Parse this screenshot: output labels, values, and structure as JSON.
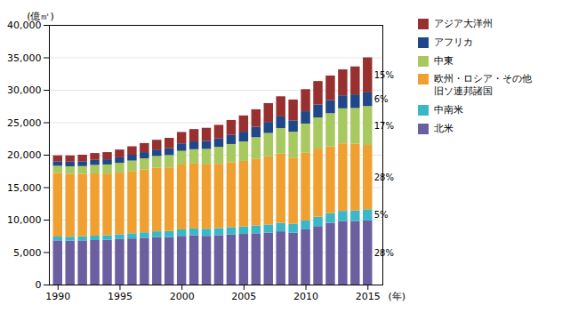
{
  "chart_data": {
    "type": "bar",
    "stacked": true,
    "x": [
      1990,
      1991,
      1992,
      1993,
      1994,
      1995,
      1996,
      1997,
      1998,
      1999,
      2000,
      2001,
      2002,
      2003,
      2004,
      2005,
      2006,
      2007,
      2008,
      2009,
      2010,
      2011,
      2012,
      2013,
      2014,
      2015
    ],
    "xlim": [
      1989.3,
      2016.2
    ],
    "xticks": [
      1990,
      1995,
      2000,
      2005,
      2010,
      2015
    ],
    "xlabel": "(年)",
    "ylabel": "(億㎥)",
    "ylim": [
      0,
      40000
    ],
    "yticks": [
      0,
      {
        "value": 5000,
        "label": "5,000"
      },
      {
        "value": 10000,
        "label": "10,000"
      },
      {
        "value": 15000,
        "label": "15,000"
      },
      {
        "value": 20000,
        "label": "20,000"
      },
      {
        "value": 25000,
        "label": "25,000"
      },
      {
        "value": 30000,
        "label": "30,000"
      },
      {
        "value": 35000,
        "label": "35,000"
      },
      {
        "value": 40000,
        "label": "40,000"
      }
    ],
    "grid": true,
    "legend": "right",
    "series": [
      {
        "name": "北米",
        "color": "#6b5fa0",
        "annotation": "28%",
        "values": [
          6800,
          6750,
          6800,
          6850,
          6900,
          7000,
          7100,
          7200,
          7300,
          7300,
          7500,
          7600,
          7500,
          7600,
          7700,
          7800,
          7900,
          8000,
          8200,
          8000,
          8500,
          9000,
          9500,
          9800,
          9800,
          9900
        ]
      },
      {
        "name": "中南米",
        "color": "#3ab8c8",
        "annotation": "5%",
        "values": [
          600,
          620,
          650,
          680,
          700,
          750,
          800,
          850,
          900,
          950,
          1000,
          1050,
          1100,
          1100,
          1150,
          1150,
          1200,
          1250,
          1300,
          1350,
          1400,
          1450,
          1500,
          1550,
          1600,
          1700
        ]
      },
      {
        "name": "欧州・ロシア・その他\n旧ソ連邦諸国",
        "color": "#f0a030",
        "annotation": "28%",
        "values": [
          9800,
          9700,
          9600,
          9600,
          9500,
          9500,
          9600,
          9700,
          9800,
          9800,
          10000,
          10000,
          9900,
          9900,
          10000,
          10100,
          10300,
          10500,
          10700,
          10200,
          10400,
          10500,
          10300,
          10400,
          10300,
          9900
        ]
      },
      {
        "name": "中東",
        "color": "#a8c860",
        "annotation": "17%",
        "values": [
          1100,
          1150,
          1200,
          1300,
          1400,
          1500,
          1600,
          1700,
          1800,
          1900,
          2100,
          2200,
          2400,
          2600,
          2800,
          3000,
          3300,
          3600,
          3900,
          4000,
          4500,
          4800,
          5100,
          5400,
          5500,
          6000
        ]
      },
      {
        "name": "アフリカ",
        "color": "#204888",
        "annotation": "6%",
        "values": [
          700,
          720,
          750,
          780,
          800,
          850,
          900,
          950,
          1000,
          1050,
          1150,
          1200,
          1250,
          1300,
          1400,
          1500,
          1600,
          1700,
          1800,
          1750,
          1900,
          2000,
          2000,
          2000,
          2100,
          2100
        ]
      },
      {
        "name": "アジア大洋州",
        "color": "#983030",
        "annotation": "15%",
        "values": [
          900,
          950,
          1000,
          1050,
          1100,
          1200,
          1300,
          1400,
          1500,
          1600,
          1750,
          1900,
          2000,
          2100,
          2300,
          2500,
          2700,
          2900,
          3100,
          3200,
          3400,
          3600,
          3800,
          4000,
          4300,
          5400
        ]
      }
    ]
  }
}
